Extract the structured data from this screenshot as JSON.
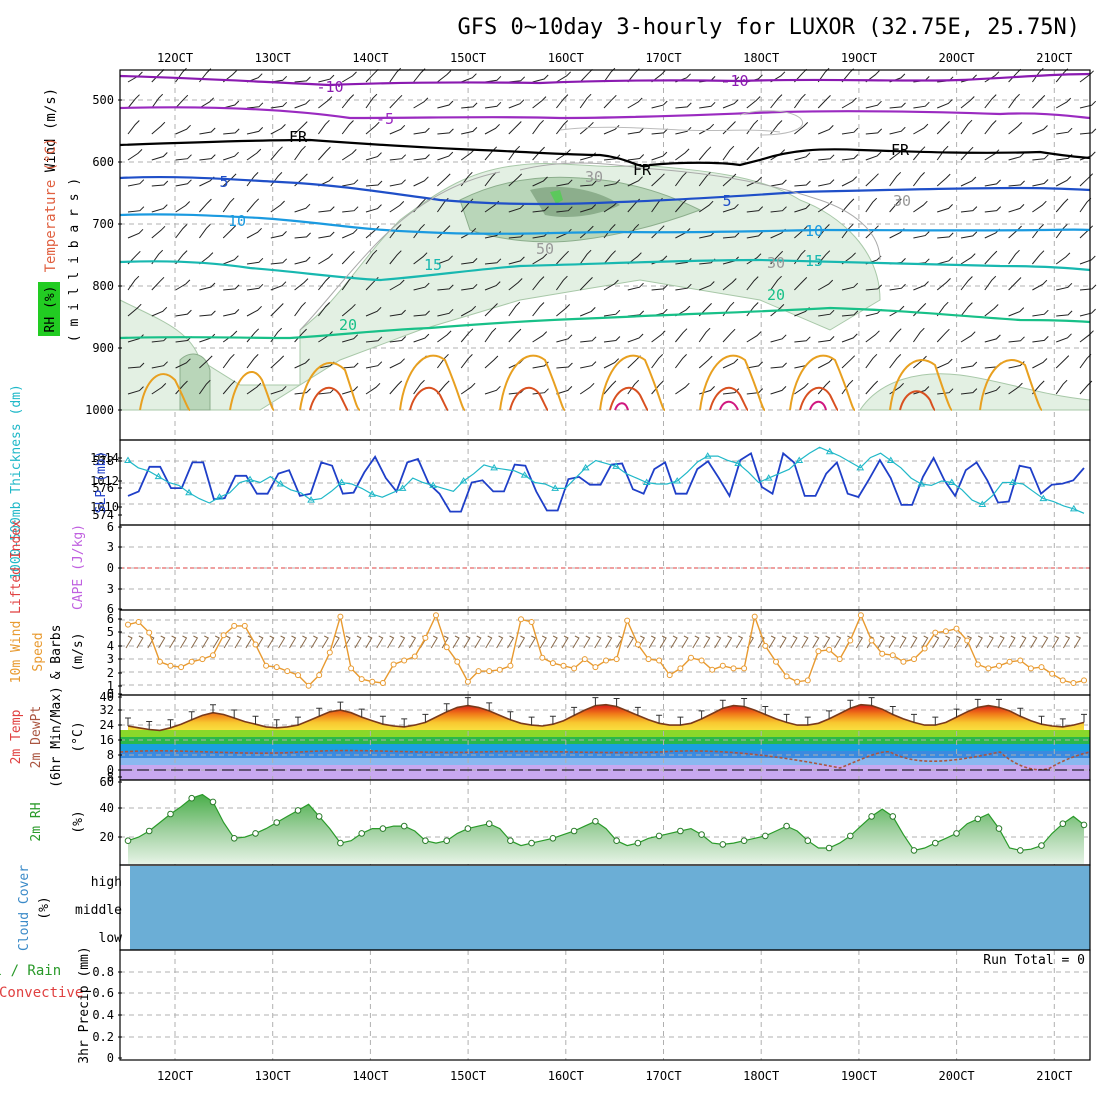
{
  "title": "GFS 0~10day 3-hourly for LUXOR (32.75E, 25.75N)",
  "time_labels": [
    "12OCT",
    "13OCT",
    "14OCT",
    "15OCT",
    "16OCT",
    "17OCT",
    "18OCT",
    "19OCT",
    "20OCT",
    "21OCT"
  ],
  "colors": {
    "temp_neg10": "#8a1ab0",
    "temp_neg5": "#9a2ac0",
    "freezing": "#000000",
    "temp_5": "#1f4fc8",
    "temp_10": "#1a9ae0",
    "temp_15": "#18b8b0",
    "temp_20": "#18c088",
    "rh_fill": "#cfe8cf",
    "rh_dark": "#7fa07f",
    "slp": "#1f3fc8",
    "thickness": "#20b8c8",
    "wind10m": "#e89a30",
    "barb": "#000000",
    "temp_line": "#7a3a1a",
    "dewpt": "#aa5540",
    "rh2m": "#2a9a2a",
    "cloud": "#6baed6",
    "li_line": "#e04040"
  },
  "panels": {
    "upper": {
      "ylabel_wind": "Wind (m/s)",
      "ylabel_temp": "Temperature (°C)",
      "ylabel_mb": "( m i l l i b a r s )",
      "ylabel_rh": "RH (%)",
      "ticks": [
        "500",
        "600",
        "700",
        "800",
        "900",
        "1000"
      ],
      "contour_labels": [
        "-10",
        "-10",
        "-5",
        "FR",
        "FR",
        "FR",
        "5",
        "5",
        "10",
        "10",
        "15",
        "15",
        "20",
        "20",
        "30",
        "30",
        "50",
        "30"
      ]
    },
    "slp": {
      "label_thk": "1000-500mb Thickness (dm)",
      "label_slp": "SLP (mb)",
      "ticks_left": [
        "578",
        "576",
        "574"
      ],
      "ticks_right": [
        "1014",
        "1012",
        "1010"
      ]
    },
    "li": {
      "label_li": "Lifted Index",
      "label_cape": "CAPE (J/kg)",
      "ticks": [
        "6",
        "3",
        "0",
        "3",
        "6"
      ]
    },
    "wind10m": {
      "label_title": "10m Wind",
      "label_speed": "Speed",
      "label_barbs": "& Barbs",
      "label_unit": "(m/s)",
      "ticks": [
        "6",
        "5",
        "4",
        "3",
        "2",
        "1",
        "0"
      ]
    },
    "temp2m": {
      "label_1": "2m Temp",
      "label_2": "2m DewPt",
      "label_3": "(6hr Min/Max)",
      "label_unit": "(°C)",
      "ticks": [
        "40",
        "32",
        "24",
        "16",
        "8",
        "0",
        "-8"
      ]
    },
    "rh2m": {
      "label": "2m RH",
      "unit": "(%)",
      "ticks": [
        "60",
        "40",
        "20"
      ]
    },
    "cloud": {
      "label": "Cloud Cover",
      "unit": "(%)",
      "levels": [
        "high",
        "middle",
        "low"
      ]
    },
    "precip": {
      "label_total": "Total / Rain",
      "label_conv": "Convective",
      "label_precip": "3hr Precip (mm)",
      "run_total": "Run Total = 0",
      "ticks": [
        "0.8",
        "0.6",
        "0.4",
        "0.2",
        "0"
      ]
    }
  },
  "chart_data": [
    {
      "type": "line",
      "name": "SLP and 1000-500mb thickness",
      "x_unit": "3-hourly steps",
      "series": [
        {
          "name": "SLP (mb)",
          "axis": "right",
          "ylim": [
            1008.2,
            1015.8
          ],
          "values": [
            1010.8,
            1011.2,
            1013.4,
            1013.4,
            1011.5,
            1011.5,
            1013.8,
            1013.8,
            1010.5,
            1010.6,
            1012.6,
            1012.6,
            1011.0,
            1011.0,
            1012.8,
            1013.1,
            1010.8,
            1011.0,
            1013.8,
            1013.5,
            1011.0,
            1011.1,
            1012.9,
            1014.3,
            1012.4,
            1011.2,
            1013.8,
            1014.1,
            1011.9,
            1011.0,
            1009.4,
            1009.4,
            1012.0,
            1012.2,
            1011.2,
            1011.2,
            1013.6,
            1013.5,
            1011.2,
            1009.5,
            1009.5,
            1012.3,
            1012.5,
            1011.8,
            1011.8,
            1013.6,
            1013.7,
            1011.4,
            1011.0,
            1013.2,
            1013.8,
            1011.0,
            1011.0,
            1013.2,
            1013.9,
            1012.4,
            1010.8,
            1014.0,
            1014.6,
            1011.6,
            1011.0,
            1014.6,
            1013.8,
            1010.8,
            1010.8,
            1012.8,
            1013.8,
            1011.0,
            1010.7,
            1012.3,
            1014.0,
            1012.4,
            1010.0,
            1010.0,
            1012.5,
            1014.2,
            1012.2,
            1010.8,
            1013.1,
            1013.8,
            1012.2,
            1010.2,
            1010.3,
            1013.5,
            1013.3,
            1011.0,
            1011.8,
            1011.9,
            1012.2,
            1013.3
          ]
        },
        {
          "name": "1000-500mb thickness (dm)",
          "axis": "left",
          "ylim": [
            573.1,
            578.9
          ],
          "values": [
            577.5,
            577.0,
            576.8,
            576.4,
            576.0,
            575.8,
            575.3,
            574.9,
            574.6,
            575.0,
            575.3,
            576.0,
            576.2,
            576.0,
            576.4,
            575.9,
            575.5,
            575.3,
            574.8,
            574.9,
            575.4,
            576.0,
            575.9,
            575.6,
            575.2,
            575.0,
            575.3,
            575.6,
            576.3,
            576.0,
            575.8,
            575.6,
            575.4,
            576.1,
            576.6,
            577.2,
            577.0,
            576.9,
            576.8,
            576.5,
            576.0,
            575.9,
            575.6,
            575.6,
            576.3,
            577.0,
            577.5,
            577.3,
            577.1,
            576.6,
            576.3,
            576.0,
            575.9,
            575.9,
            576.1,
            576.7,
            577.4,
            577.8,
            577.8,
            577.5,
            577.3,
            576.7,
            576.0,
            576.3,
            576.6,
            576.9,
            577.5,
            578.0,
            578.4,
            578.1,
            577.8,
            577.4,
            577.0,
            577.7,
            578.0,
            577.5,
            577.0,
            576.3,
            575.9,
            575.8,
            576.1,
            576.0,
            575.5,
            574.8,
            574.5,
            575.1,
            576.0,
            576.0,
            575.9,
            575.4,
            574.9,
            574.7,
            574.4,
            574.2,
            573.9
          ]
        }
      ]
    },
    {
      "type": "line",
      "name": "10m wind speed",
      "ylim": [
        0,
        6.4
      ],
      "values": [
        5.3,
        5.5,
        4.7,
        2.5,
        2.2,
        2.1,
        2.5,
        2.7,
        3.0,
        4.5,
        5.2,
        5.2,
        3.8,
        2.2,
        2.1,
        1.8,
        1.5,
        0.7,
        1.5,
        3.2,
        5.9,
        2.0,
        1.2,
        1.0,
        0.9,
        2.3,
        2.6,
        2.9,
        4.3,
        6.0,
        3.6,
        2.5,
        1.0,
        1.8,
        1.8,
        1.9,
        2.2,
        5.7,
        5.5,
        2.8,
        2.4,
        2.2,
        2.0,
        2.7,
        2.1,
        2.6,
        2.7,
        5.6,
        3.8,
        2.7,
        2.6,
        1.5,
        2.0,
        2.8,
        2.6,
        1.9,
        2.2,
        2.0,
        2.0,
        5.9,
        3.7,
        2.5,
        1.4,
        1.0,
        1.1,
        3.3,
        3.4,
        2.7,
        4.1,
        6.0,
        4.1,
        3.1,
        3.0,
        2.5,
        2.7,
        3.5,
        4.7,
        4.8,
        5.0,
        4.1,
        2.3,
        2.0,
        2.2,
        2.5,
        2.6,
        2.0,
        2.1,
        1.6,
        1.1,
        0.9,
        1.1
      ]
    },
    {
      "type": "area",
      "name": "2m temperature",
      "ylim": [
        -8,
        40
      ],
      "values": [
        22.5,
        21.5,
        20.5,
        20.0,
        21.5,
        23.5,
        26.0,
        28.5,
        30.0,
        29.0,
        27.0,
        25.0,
        23.5,
        22.0,
        21.5,
        22.0,
        23.0,
        25.5,
        28.0,
        30.5,
        31.5,
        30.0,
        27.5,
        25.5,
        23.5,
        22.5,
        22.0,
        23.0,
        24.5,
        27.5,
        30.5,
        33.0,
        34.0,
        33.0,
        31.0,
        28.5,
        26.0,
        24.0,
        23.0,
        22.5,
        23.5,
        25.5,
        28.5,
        31.5,
        34.0,
        34.5,
        33.5,
        31.0,
        28.5,
        26.0,
        24.0,
        23.0,
        23.0,
        24.0,
        26.5,
        29.5,
        32.5,
        34.0,
        33.5,
        31.5,
        29.0,
        26.5,
        24.5,
        23.0,
        23.0,
        24.0,
        26.5,
        29.5,
        32.5,
        34.5,
        34.0,
        32.0,
        29.0,
        26.5,
        24.5,
        23.0,
        23.0,
        24.5,
        27.5,
        30.5,
        33.0,
        34.0,
        33.0,
        31.0,
        28.0,
        25.5,
        23.5,
        22.5,
        22.0,
        23.0,
        24.5
      ]
    },
    {
      "type": "area",
      "name": "2m relative humidity (%)",
      "ylim": [
        0,
        70
      ],
      "values": [
        20,
        23,
        28,
        35,
        42,
        48,
        55,
        58,
        52,
        35,
        22,
        23,
        26,
        30,
        35,
        40,
        45,
        50,
        40,
        30,
        18,
        20,
        26,
        30,
        30,
        32,
        32,
        28,
        20,
        18,
        20,
        26,
        30,
        32,
        34,
        30,
        20,
        16,
        18,
        20,
        22,
        25,
        28,
        32,
        36,
        30,
        20,
        16,
        18,
        22,
        24,
        26,
        28,
        30,
        25,
        18,
        17,
        18,
        20,
        22,
        24,
        28,
        32,
        28,
        20,
        14,
        14,
        18,
        24,
        32,
        40,
        46,
        40,
        25,
        12,
        14,
        18,
        22,
        26,
        34,
        38,
        42,
        30,
        14,
        12,
        13,
        16,
        26,
        34,
        40,
        33
      ]
    },
    {
      "type": "table",
      "name": "3hr precipitation (mm)",
      "run_total": "0",
      "values": [
        0
      ]
    }
  ]
}
